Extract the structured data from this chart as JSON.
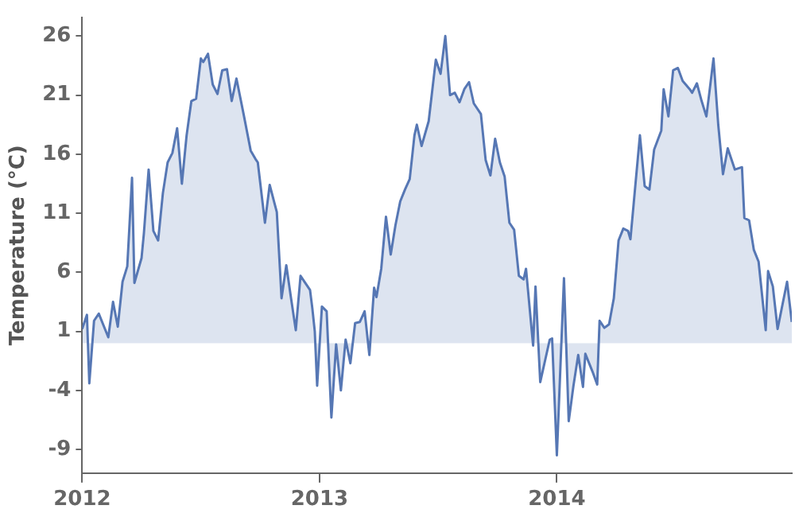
{
  "chart_data": {
    "type": "area",
    "ylabel": "Temperature (°C)",
    "grid": false,
    "legend": false,
    "xlim": [
      2012,
      2014.99
    ],
    "xticks": [
      2012,
      2013,
      2014
    ],
    "ylim": [
      -11,
      27.6
    ],
    "yticks": [
      -9,
      -4,
      1,
      6,
      11,
      16,
      21,
      26
    ],
    "series": [
      {
        "color": "#5677b4",
        "x": [
          2012.0,
          2012.02,
          2012.03,
          2012.05,
          2012.07,
          2012.11,
          2012.13,
          2012.15,
          2012.17,
          2012.19,
          2012.21,
          2012.22,
          2012.25,
          2012.26,
          2012.28,
          2012.3,
          2012.32,
          2012.34,
          2012.36,
          2012.38,
          2012.4,
          2012.42,
          2012.44,
          2012.46,
          2012.48,
          2012.5,
          2012.51,
          2012.53,
          2012.55,
          2012.57,
          2012.59,
          2012.61,
          2012.63,
          2012.65,
          2012.68,
          2012.71,
          2012.73,
          2012.74,
          2012.77,
          2012.79,
          2012.82,
          2012.84,
          2012.86,
          2012.88,
          2012.9,
          2012.92,
          2012.96,
          2012.97,
          2012.98,
          2012.99,
          2013.01,
          2013.03,
          2013.05,
          2013.07,
          2013.09,
          2013.11,
          2013.13,
          2013.15,
          2013.17,
          2013.19,
          2013.21,
          2013.23,
          2013.24,
          2013.26,
          2013.28,
          2013.3,
          2013.32,
          2013.34,
          2013.36,
          2013.38,
          2013.4,
          2013.41,
          2013.43,
          2013.46,
          2013.49,
          2013.51,
          2013.53,
          2013.55,
          2013.57,
          2013.59,
          2013.61,
          2013.63,
          2013.65,
          2013.68,
          2013.7,
          2013.72,
          2013.74,
          2013.76,
          2013.78,
          2013.8,
          2013.82,
          2013.84,
          2013.86,
          2013.87,
          2013.9,
          2013.91,
          2013.93,
          2013.97,
          2013.98,
          2014.0,
          2014.03,
          2014.05,
          2014.07,
          2014.09,
          2014.11,
          2014.12,
          2014.15,
          2014.17,
          2014.18,
          2014.2,
          2014.22,
          2014.24,
          2014.26,
          2014.28,
          2014.3,
          2014.31,
          2014.35,
          2014.37,
          2014.39,
          2014.41,
          2014.44,
          2014.45,
          2014.47,
          2014.49,
          2014.51,
          2014.53,
          2014.56,
          2014.57,
          2014.59,
          2014.61,
          2014.63,
          2014.64,
          2014.66,
          2014.68,
          2014.7,
          2014.72,
          2014.74,
          2014.75,
          2014.78,
          2014.79,
          2014.81,
          2014.83,
          2014.85,
          2014.88,
          2014.89,
          2014.91,
          2014.93,
          2014.97,
          2014.99
        ],
        "values": [
          1.2,
          2.4,
          -3.4,
          1.9,
          2.5,
          0.5,
          3.5,
          1.4,
          5.2,
          6.5,
          14.0,
          5.1,
          7.2,
          9.3,
          14.7,
          9.5,
          8.7,
          12.7,
          15.3,
          16.1,
          18.2,
          13.5,
          17.6,
          20.5,
          20.7,
          24.1,
          23.8,
          24.5,
          21.9,
          21.1,
          23.1,
          23.2,
          20.5,
          22.4,
          19.4,
          16.3,
          15.6,
          15.3,
          10.2,
          13.4,
          11.1,
          3.8,
          6.6,
          3.8,
          1.1,
          5.7,
          4.5,
          2.9,
          1.0,
          -3.6,
          3.1,
          2.7,
          -6.3,
          -0.1,
          -4.0,
          0.3,
          -1.7,
          1.7,
          1.8,
          2.7,
          -1.0,
          4.7,
          3.9,
          6.3,
          10.7,
          7.5,
          10.0,
          12.0,
          13.0,
          13.9,
          17.6,
          18.5,
          16.7,
          18.8,
          24.0,
          22.8,
          26.0,
          21.0,
          21.2,
          20.4,
          21.5,
          22.1,
          20.3,
          19.4,
          15.5,
          14.2,
          17.3,
          15.3,
          14.1,
          10.2,
          9.6,
          5.7,
          5.4,
          6.3,
          -0.2,
          4.8,
          -3.3,
          0.3,
          0.4,
          -9.5,
          5.5,
          -6.6,
          -3.6,
          -1.0,
          -3.7,
          -0.9,
          -2.4,
          -3.5,
          1.9,
          1.3,
          1.6,
          3.8,
          8.7,
          9.7,
          9.5,
          8.8,
          17.6,
          13.3,
          13.0,
          16.4,
          18.0,
          21.5,
          19.2,
          23.1,
          23.3,
          22.2,
          21.5,
          21.2,
          22.0,
          20.5,
          19.2,
          20.8,
          24.1,
          18.5,
          14.3,
          16.5,
          15.3,
          14.7,
          14.9,
          10.6,
          10.4,
          7.9,
          6.9,
          1.1,
          6.1,
          4.8,
          1.2,
          5.2,
          1.8
        ]
      }
    ]
  }
}
